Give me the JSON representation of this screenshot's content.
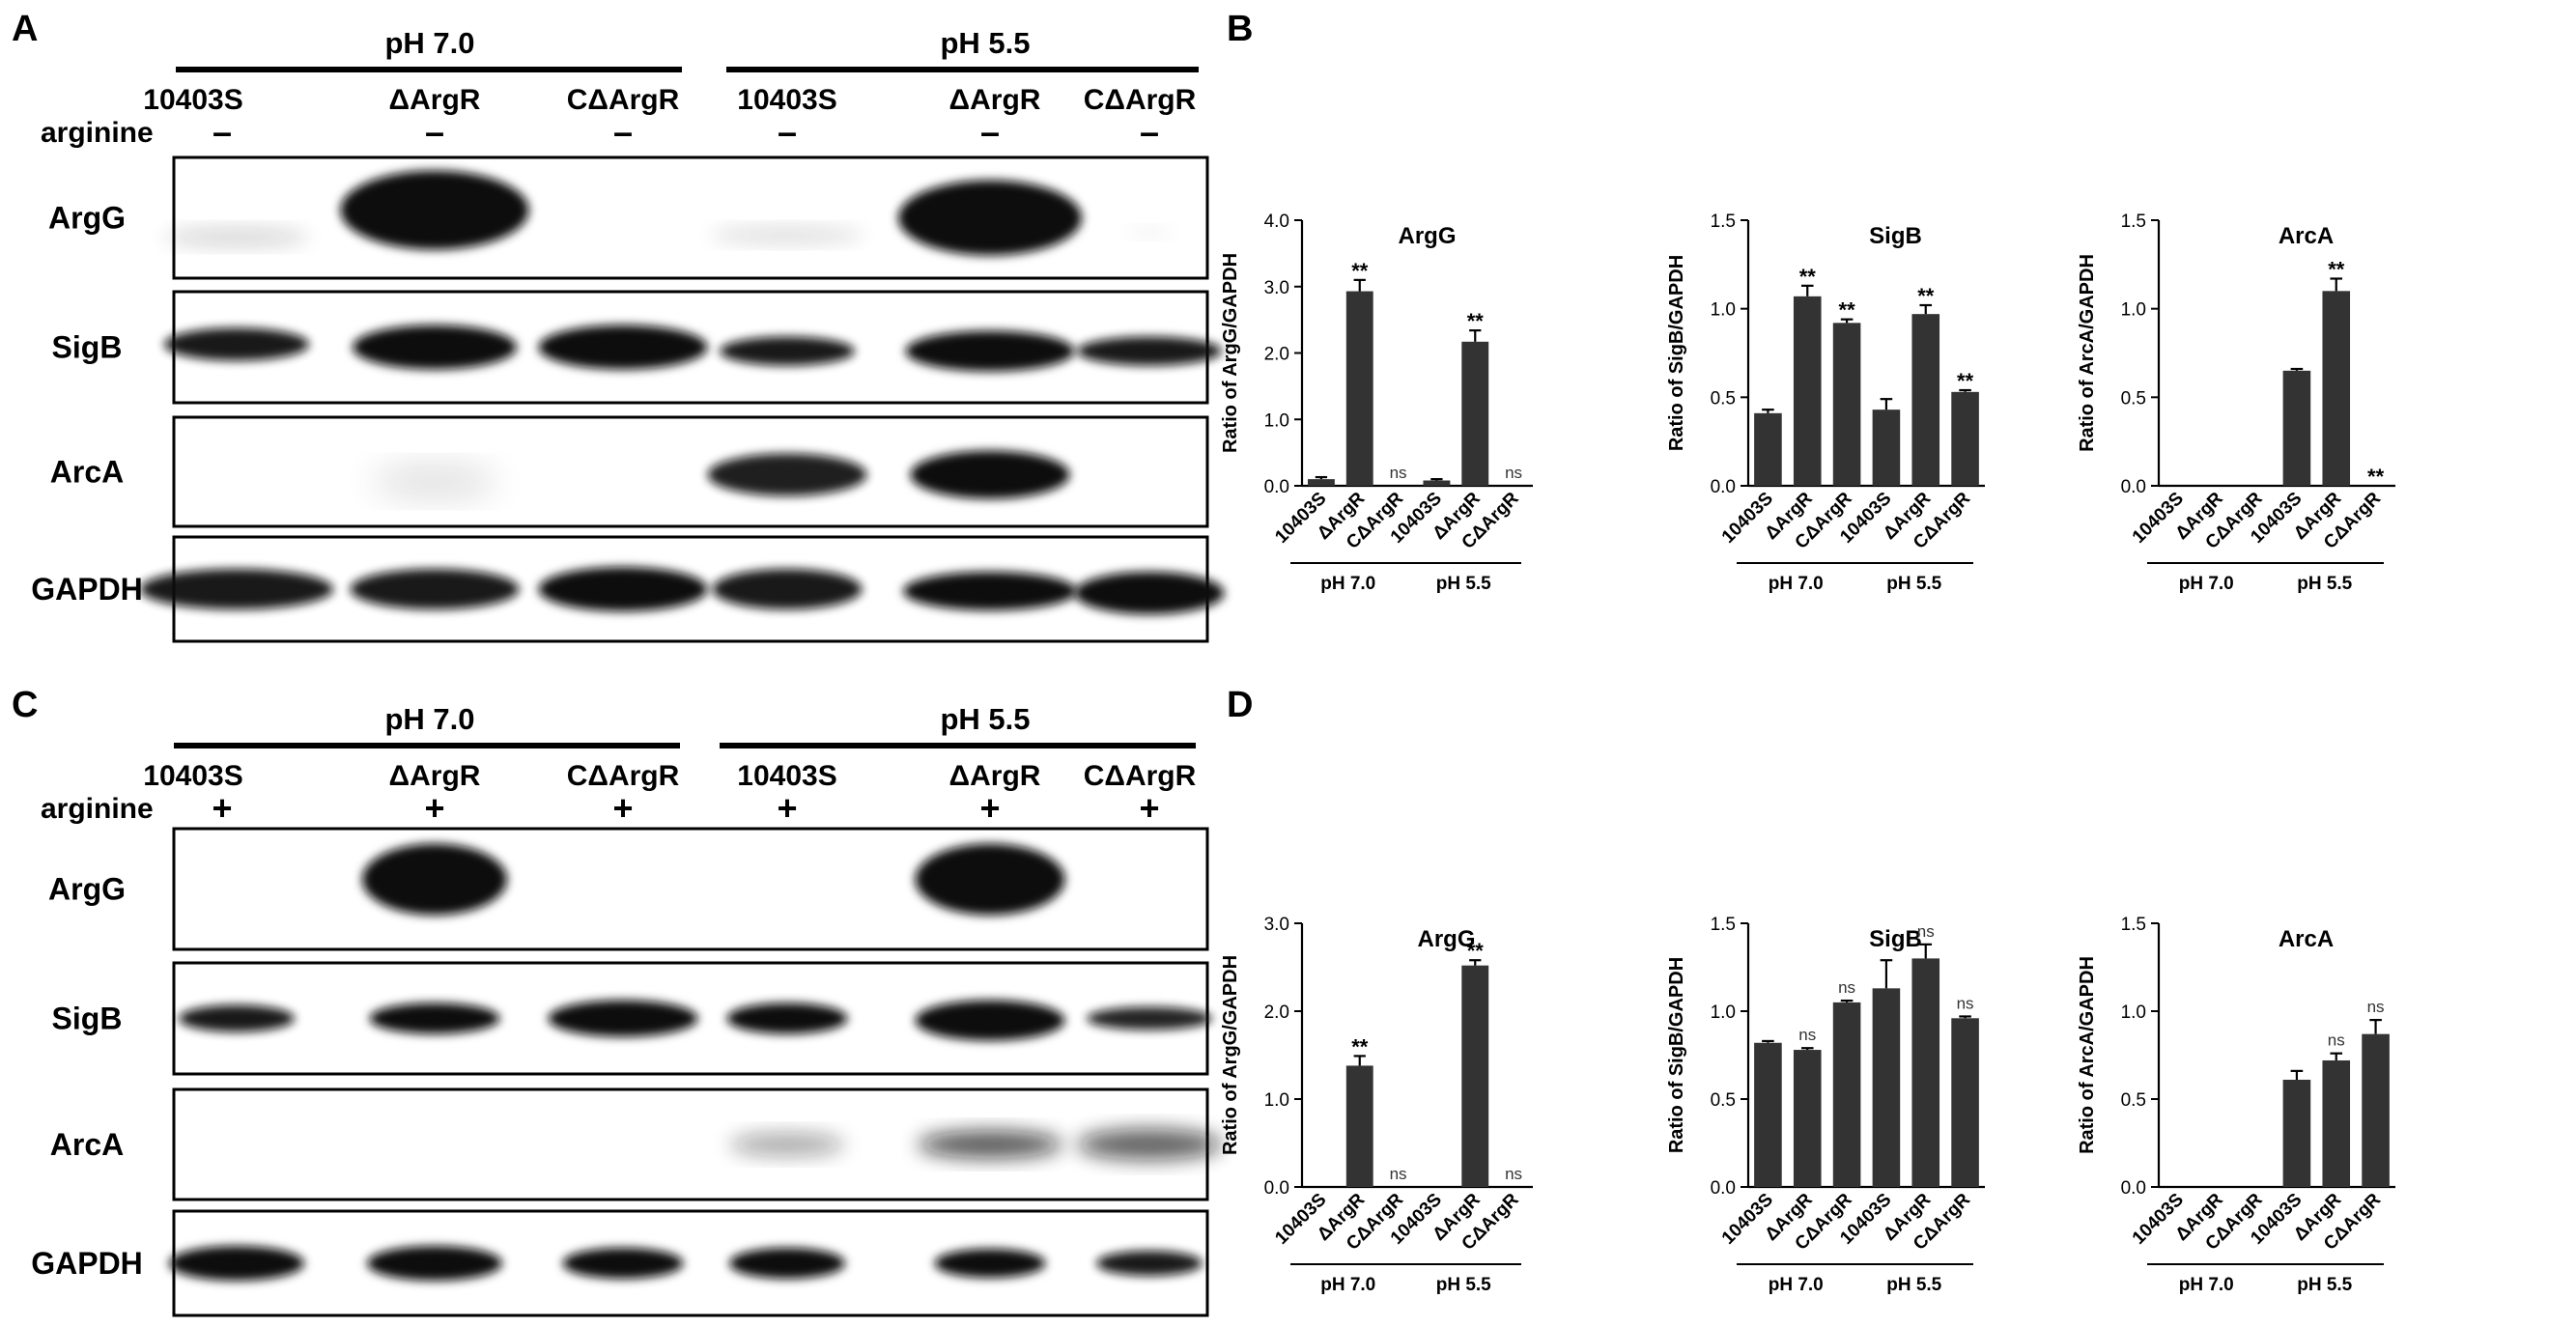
{
  "panels": {
    "A": "A",
    "B": "B",
    "C": "C",
    "D": "D"
  },
  "blots": [
    {
      "panel": "A",
      "conditions": [
        "pH 7.0",
        "pH 5.5"
      ],
      "lanes": [
        "10403S",
        "ΔArgR",
        "CΔArgR",
        "10403S",
        "ΔArgR",
        "CΔArgR"
      ],
      "arginine_label": "arginine",
      "arginine_marks": [
        "-",
        "-",
        "-",
        "-",
        "-",
        "-"
      ],
      "proteins": [
        "ArgG",
        "SigB",
        "ArcA",
        "GAPDH"
      ]
    },
    {
      "panel": "C",
      "conditions": [
        "pH 7.0",
        "pH 5.5"
      ],
      "lanes": [
        "10403S",
        "ΔArgR",
        "CΔArgR",
        "10403S",
        "ΔArgR",
        "CΔArgR"
      ],
      "arginine_label": "arginine",
      "arginine_marks": [
        "+",
        "+",
        "+",
        "+",
        "+",
        "+"
      ],
      "proteins": [
        "ArgG",
        "SigB",
        "ArcA",
        "GAPDH"
      ]
    }
  ],
  "chart_data": [
    {
      "type": "bar",
      "panel": "B",
      "title": "ArgG",
      "ylabel": "Ratio of ArgG/GAPDH",
      "ylim": [
        0,
        4
      ],
      "yticks": [
        "0.0",
        "1.0",
        "2.0",
        "3.0",
        "4.0"
      ],
      "categories": [
        "10403S",
        "ΔArgR",
        "CΔArgR",
        "10403S",
        "ΔArgR",
        "CΔArgR"
      ],
      "groups": [
        {
          "label": "pH 7.0",
          "from": 0,
          "to": 2
        },
        {
          "label": "pH 5.5",
          "from": 3,
          "to": 5
        }
      ],
      "values": [
        0.1,
        2.93,
        null,
        0.08,
        2.17,
        null
      ],
      "errors": [
        0.03,
        0.17,
        null,
        0.02,
        0.17,
        null
      ],
      "annotations": [
        "",
        "**",
        "ns",
        "",
        "**",
        "ns"
      ]
    },
    {
      "type": "bar",
      "panel": "B",
      "title": "SigB",
      "ylabel": "Ratio of SigB/GAPDH",
      "ylim": [
        0,
        1.5
      ],
      "yticks": [
        "0.0",
        "0.5",
        "1.0",
        "1.5"
      ],
      "categories": [
        "10403S",
        "ΔArgR",
        "CΔArgR",
        "10403S",
        "ΔArgR",
        "CΔArgR"
      ],
      "groups": [
        {
          "label": "pH 7.0",
          "from": 0,
          "to": 2
        },
        {
          "label": "pH 5.5",
          "from": 3,
          "to": 5
        }
      ],
      "values": [
        0.41,
        1.07,
        0.92,
        0.43,
        0.97,
        0.53
      ],
      "errors": [
        0.02,
        0.06,
        0.02,
        0.06,
        0.05,
        0.01
      ],
      "annotations": [
        "",
        "**",
        "**",
        "",
        "**",
        "**"
      ]
    },
    {
      "type": "bar",
      "panel": "B",
      "title": "ArcA",
      "ylabel": "Ratio of ArcA/GAPDH",
      "ylim": [
        0,
        1.5
      ],
      "yticks": [
        "0.0",
        "0.5",
        "1.0",
        "1.5"
      ],
      "categories": [
        "10403S",
        "ΔArgR",
        "CΔArgR",
        "10403S",
        "ΔArgR",
        "CΔArgR"
      ],
      "groups": [
        {
          "label": "pH 7.0",
          "from": 0,
          "to": 2
        },
        {
          "label": "pH 5.5",
          "from": 3,
          "to": 5
        }
      ],
      "values": [
        null,
        null,
        null,
        0.65,
        1.1,
        null
      ],
      "errors": [
        null,
        null,
        null,
        0.01,
        0.07,
        null
      ],
      "annotations": [
        "",
        "",
        "",
        "",
        "**",
        "**"
      ]
    },
    {
      "type": "bar",
      "panel": "D",
      "title": "ArgG",
      "ylabel": "Ratio of ArgG/GAPDH",
      "ylim": [
        0,
        3
      ],
      "yticks": [
        "0.0",
        "1.0",
        "2.0",
        "3.0"
      ],
      "categories": [
        "10403S",
        "ΔArgR",
        "CΔArgR",
        "10403S",
        "ΔArgR",
        "CΔArgR"
      ],
      "groups": [
        {
          "label": "pH 7.0",
          "from": 0,
          "to": 2
        },
        {
          "label": "pH 5.5",
          "from": 3,
          "to": 5
        }
      ],
      "values": [
        null,
        1.38,
        null,
        null,
        2.52,
        null
      ],
      "errors": [
        null,
        0.11,
        null,
        null,
        0.06,
        null
      ],
      "annotations": [
        "",
        "**",
        "ns",
        "",
        "**",
        "ns"
      ]
    },
    {
      "type": "bar",
      "panel": "D",
      "title": "SigB",
      "ylabel": "Ratio of SigB/GAPDH",
      "ylim": [
        0,
        1.5
      ],
      "yticks": [
        "0.0",
        "0.5",
        "1.0",
        "1.5"
      ],
      "categories": [
        "10403S",
        "ΔArgR",
        "CΔArgR",
        "10403S",
        "ΔArgR",
        "CΔArgR"
      ],
      "groups": [
        {
          "label": "pH 7.0",
          "from": 0,
          "to": 2
        },
        {
          "label": "pH 5.5",
          "from": 3,
          "to": 5
        }
      ],
      "values": [
        0.82,
        0.78,
        1.05,
        1.13,
        1.3,
        0.96
      ],
      "errors": [
        0.01,
        0.01,
        0.01,
        0.16,
        0.08,
        0.01
      ],
      "annotations": [
        "",
        "ns",
        "ns",
        "",
        "ns",
        "ns"
      ]
    },
    {
      "type": "bar",
      "panel": "D",
      "title": "ArcA",
      "ylabel": "Ratio of ArcA/GAPDH",
      "ylim": [
        0,
        1.5
      ],
      "yticks": [
        "0.0",
        "0.5",
        "1.0",
        "1.5"
      ],
      "categories": [
        "10403S",
        "ΔArgR",
        "CΔArgR",
        "10403S",
        "ΔArgR",
        "CΔArgR"
      ],
      "groups": [
        {
          "label": "pH 7.0",
          "from": 0,
          "to": 2
        },
        {
          "label": "pH 5.5",
          "from": 3,
          "to": 5
        }
      ],
      "values": [
        null,
        null,
        null,
        0.61,
        0.72,
        0.87
      ],
      "errors": [
        null,
        null,
        null,
        0.05,
        0.04,
        0.08
      ],
      "annotations": [
        "",
        "",
        "",
        "",
        "ns",
        "ns"
      ]
    }
  ],
  "colors": {
    "bar": "#333333",
    "axis": "#000000",
    "band": "#111111"
  }
}
